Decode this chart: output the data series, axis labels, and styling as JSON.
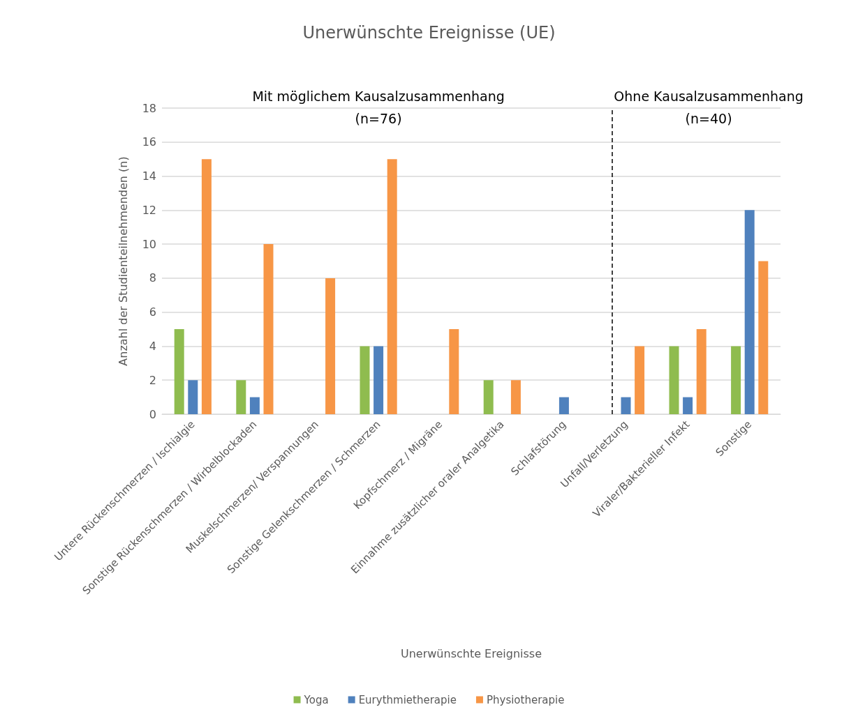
{
  "chart_data": {
    "type": "bar",
    "title": "Unerwünschte Ereignisse (UE)",
    "xlabel": "Unerwünschte Ereignisse",
    "ylabel": "Anzahl der Studienteilnehmenden (n)",
    "categories": [
      "Untere Rückenschmerzen / Ischialgie",
      "Sonstige Rückenschmerzen / Wirbelblockaden",
      "Muskelschmerzen/ Verspannungen",
      "Sonstige Gelenkschmerzen / Schmerzen",
      "Kopfschmerz / Migräne",
      "Einnahme zusätzlicher oraler Analgetika",
      "Schlafstörung",
      "Unfall/Verletzung",
      "Viraler/Bakterieller Infekt",
      "Sonstige"
    ],
    "series": [
      {
        "name": "Yoga",
        "color": "#8fbc4f",
        "values": [
          5,
          2,
          0,
          4,
          0,
          2,
          0,
          0,
          4,
          4
        ]
      },
      {
        "name": "Eurythmietherapie",
        "color": "#4f81bd",
        "values": [
          2,
          1,
          0,
          4,
          0,
          0,
          1,
          1,
          1,
          12
        ]
      },
      {
        "name": "Physiotherapie",
        "color": "#f79646",
        "values": [
          15,
          10,
          8,
          15,
          5,
          2,
          0,
          4,
          5,
          9
        ]
      }
    ],
    "ylim": [
      0,
      18
    ],
    "yticks": [
      0,
      2,
      4,
      6,
      8,
      10,
      12,
      14,
      16,
      18
    ],
    "grid": "y",
    "legend": "bottom",
    "ref_lines": [
      {
        "axis": "x",
        "value": "Unfall/Verletzung",
        "color": "#000000",
        "line_style": "dashed"
      }
    ],
    "annotations": [
      "Mit möglichem Kausalzusammenhang\n(n=76)",
      "Ohne Kausalzusammenhang\n(n=40)"
    ]
  }
}
